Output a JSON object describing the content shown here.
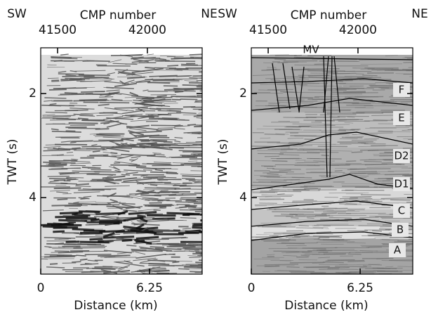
{
  "chart_data": [
    {
      "type": "seismic",
      "left_label": "SW",
      "right_label": "NE",
      "top_axis_label": "CMP number",
      "top_xlim": [
        41406,
        42305
      ],
      "top_xticks": [
        41500,
        42000
      ],
      "xlabel": "Distance (km)",
      "xlim": [
        0,
        9.27
      ],
      "xticks": [
        0,
        6.25
      ],
      "ylabel": "TWT (s)",
      "ylim": [
        1.12,
        5.47
      ],
      "yticks": [
        2,
        4
      ],
      "y_inverted": true
    },
    {
      "type": "seismic",
      "left_label": "SW",
      "right_label": "NE",
      "top_axis_label": "CMP number",
      "top_xlim": [
        41406,
        42305
      ],
      "top_xticks": [
        41500,
        42000
      ],
      "xlabel": "Distance (km)",
      "xlim": [
        0,
        9.27
      ],
      "xticks": [
        0,
        6.25
      ],
      "ylabel": "TWT (s)",
      "ylim": [
        1.12,
        5.47
      ],
      "yticks": [
        2,
        4
      ],
      "y_inverted": true,
      "annotations": [
        "MV",
        "F",
        "E",
        "D2",
        "D1",
        "C",
        "B",
        "A"
      ]
    }
  ]
}
